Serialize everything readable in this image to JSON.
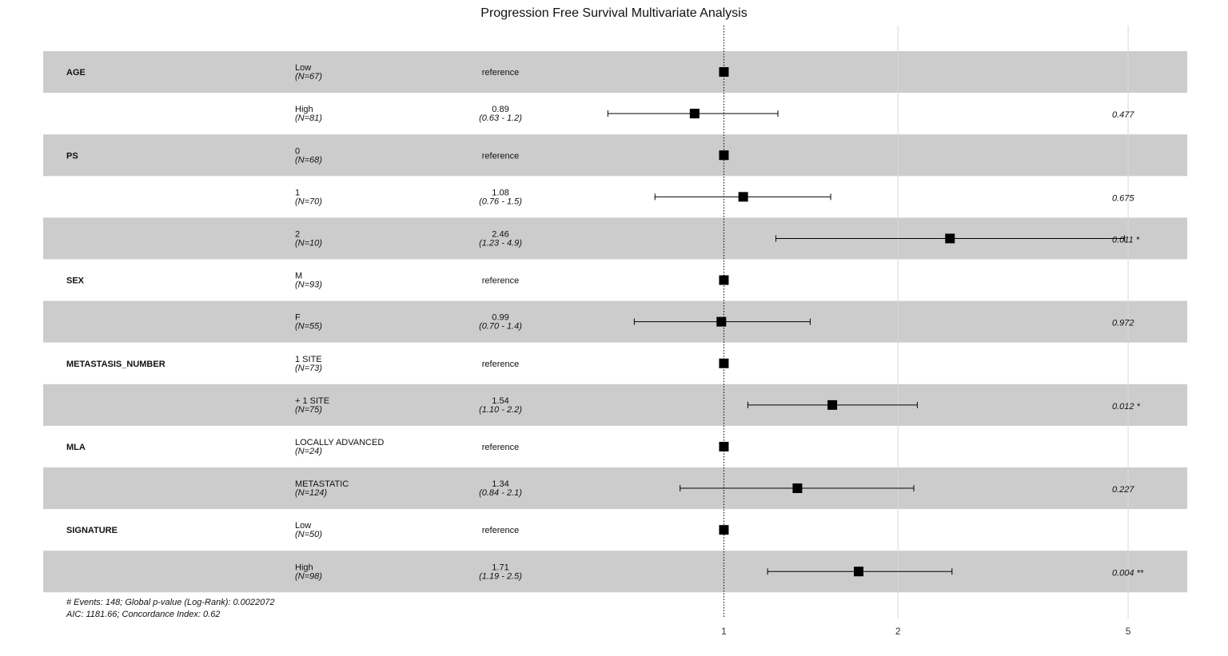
{
  "chart_data": {
    "type": "forest",
    "title": "Progression Free Survival Multivariate Analysis",
    "x_scale": "log",
    "xlim": [
      0.52,
      6.07
    ],
    "x_ticks": [
      {
        "value": 1,
        "label": "1"
      },
      {
        "value": 2,
        "label": "2"
      },
      {
        "value": 5,
        "label": "5"
      }
    ],
    "reference_line": 1,
    "rows": [
      {
        "variable": "AGE",
        "level": "Low",
        "n": "(N=67)",
        "estimate_text": "reference",
        "ci_text": "",
        "p_text": "",
        "hr": 1,
        "lo": null,
        "hi": null,
        "shaded": true
      },
      {
        "variable": "",
        "level": "High",
        "n": "(N=81)",
        "estimate_text": "0.89",
        "ci_text": "(0.63 - 1.2)",
        "p_text": "0.477",
        "hr": 0.89,
        "lo": 0.63,
        "hi": 1.24,
        "shaded": false
      },
      {
        "variable": "PS",
        "level": "0",
        "n": "(N=68)",
        "estimate_text": "reference",
        "ci_text": "",
        "p_text": "",
        "hr": 1,
        "lo": null,
        "hi": null,
        "shaded": true
      },
      {
        "variable": "",
        "level": "1",
        "n": "(N=70)",
        "estimate_text": "1.08",
        "ci_text": "(0.76 - 1.5)",
        "p_text": "0.675",
        "hr": 1.08,
        "lo": 0.76,
        "hi": 1.53,
        "shaded": false
      },
      {
        "variable": "",
        "level": "2",
        "n": "(N=10)",
        "estimate_text": "2.46",
        "ci_text": "(1.23 - 4.9)",
        "p_text": "0.011 *",
        "hr": 2.46,
        "lo": 1.23,
        "hi": 4.93,
        "shaded": true
      },
      {
        "variable": "SEX",
        "level": "M",
        "n": "(N=93)",
        "estimate_text": "reference",
        "ci_text": "",
        "p_text": "",
        "hr": 1,
        "lo": null,
        "hi": null,
        "shaded": false
      },
      {
        "variable": "",
        "level": "F",
        "n": "(N=55)",
        "estimate_text": "0.99",
        "ci_text": "(0.70 - 1.4)",
        "p_text": "0.972",
        "hr": 0.99,
        "lo": 0.7,
        "hi": 1.41,
        "shaded": true
      },
      {
        "variable": "METASTASIS_NUMBER",
        "level": "1 SITE",
        "n": "(N=73)",
        "estimate_text": "reference",
        "ci_text": "",
        "p_text": "",
        "hr": 1,
        "lo": null,
        "hi": null,
        "shaded": false
      },
      {
        "variable": "",
        "level": "+ 1 SITE",
        "n": "(N=75)",
        "estimate_text": "1.54",
        "ci_text": "(1.10 - 2.2)",
        "p_text": "0.012 *",
        "hr": 1.54,
        "lo": 1.1,
        "hi": 2.16,
        "shaded": true
      },
      {
        "variable": "MLA",
        "level": "LOCALLY ADVANCED",
        "n": "(N=24)",
        "estimate_text": "reference",
        "ci_text": "",
        "p_text": "",
        "hr": 1,
        "lo": null,
        "hi": null,
        "shaded": false
      },
      {
        "variable": "",
        "level": "METASTATIC",
        "n": "(N=124)",
        "estimate_text": "1.34",
        "ci_text": "(0.84 - 2.1)",
        "p_text": "0.227",
        "hr": 1.34,
        "lo": 0.84,
        "hi": 2.13,
        "shaded": true
      },
      {
        "variable": "SIGNATURE",
        "level": "Low",
        "n": "(N=50)",
        "estimate_text": "reference",
        "ci_text": "",
        "p_text": "",
        "hr": 1,
        "lo": null,
        "hi": null,
        "shaded": false
      },
      {
        "variable": "",
        "level": "High",
        "n": "(N=98)",
        "estimate_text": "1.71",
        "ci_text": "(1.19 - 2.5)",
        "p_text": "0.004 **",
        "hr": 1.71,
        "lo": 1.19,
        "hi": 2.48,
        "shaded": true
      }
    ],
    "footnotes": [
      "# Events: 148; Global p-value (Log-Rank): 0.0022072",
      "AIC: 1181.66; Concordance Index: 0.62"
    ],
    "colors": {
      "shade": "#cccccc",
      "marker": "#000000",
      "grid": "#d9d9d9"
    }
  }
}
